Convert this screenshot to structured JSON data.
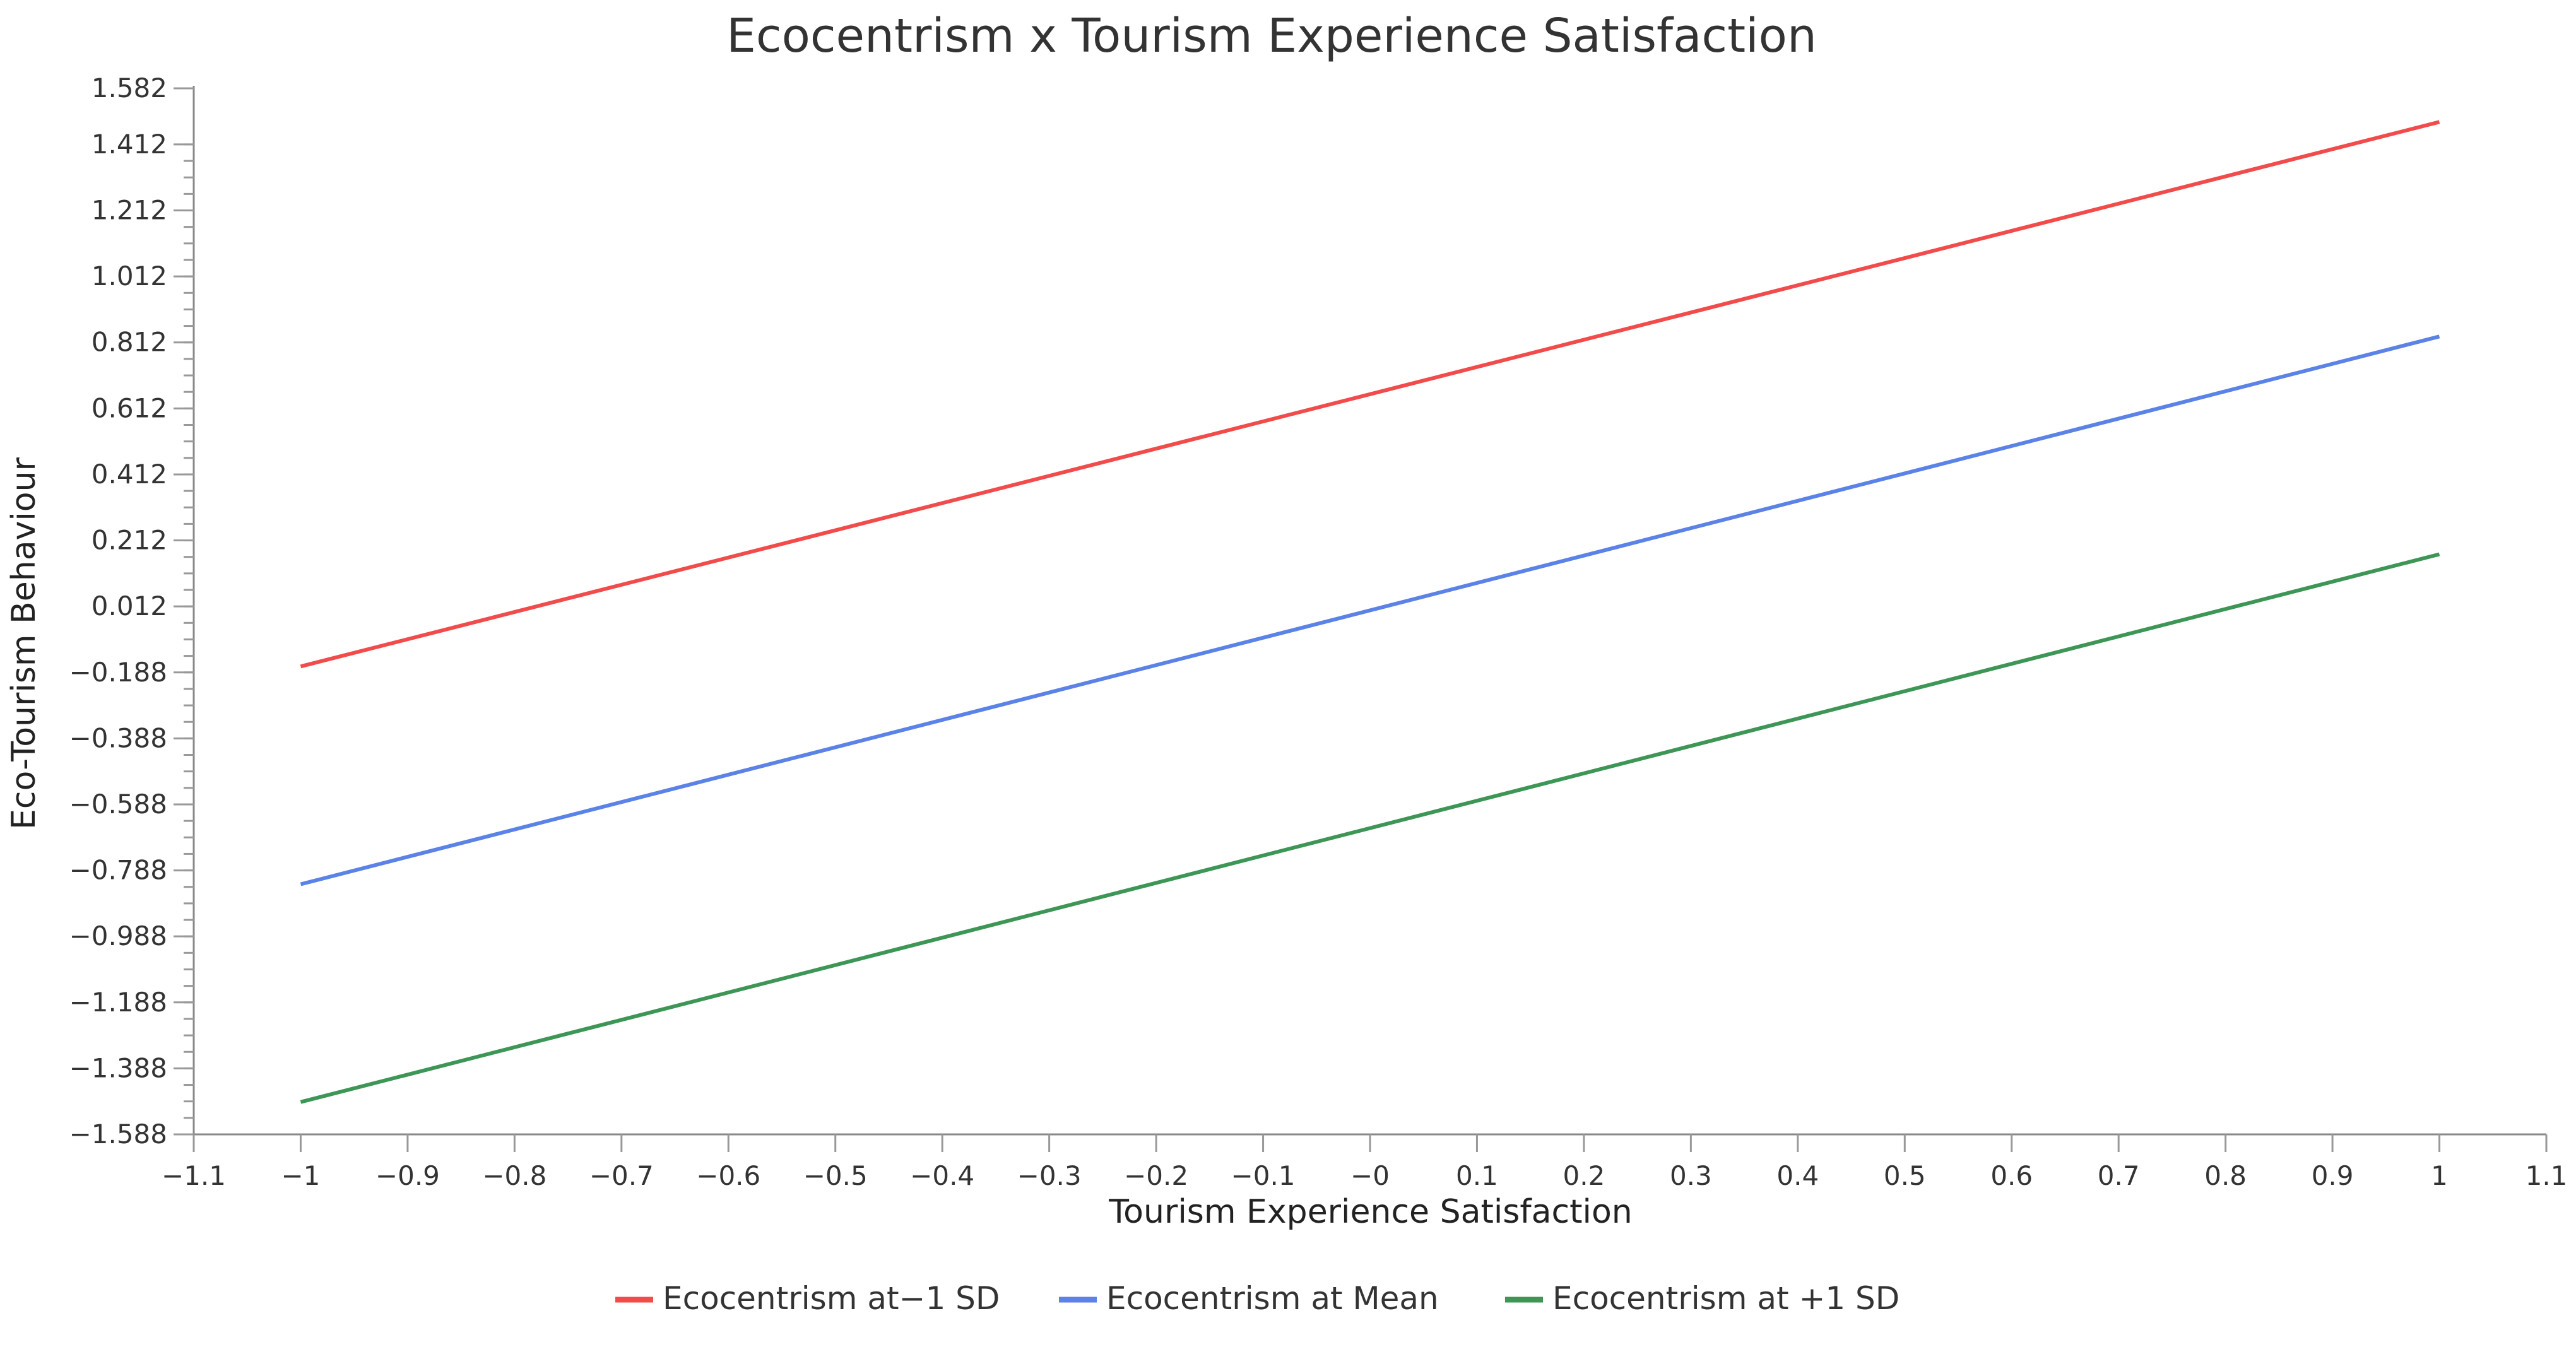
{
  "chart_data": {
    "type": "line",
    "title": "Ecocentrism x Tourism Experience Satisfaction",
    "xlabel": "Tourism Experience Satisfaction",
    "ylabel": "Eco-Tourism Behaviour",
    "xlim": [
      -1.1,
      1.1
    ],
    "ylim": [
      -1.588,
      1.582
    ],
    "x_ticks": [
      -1.1,
      -1,
      -0.9,
      -0.8,
      -0.7,
      -0.6,
      -0.5,
      -0.4,
      -0.3,
      -0.2,
      -0.1,
      0,
      0.1,
      0.2,
      0.3,
      0.4,
      0.5,
      0.6,
      0.7,
      0.8,
      0.9,
      1,
      1.1
    ],
    "x_tick_labels": [
      "−1.1",
      "−1",
      "−0.9",
      "−0.8",
      "−0.7",
      "−0.6",
      "−0.5",
      "−0.4",
      "−0.3",
      "−0.2",
      "−0.1",
      "−0",
      "0.1",
      "0.2",
      "0.3",
      "0.4",
      "0.5",
      "0.6",
      "0.7",
      "0.8",
      "0.9",
      "1",
      "1.1"
    ],
    "y_ticks": [
      1.582,
      1.412,
      1.212,
      1.012,
      0.812,
      0.612,
      0.412,
      0.212,
      0.012,
      -0.188,
      -0.388,
      -0.588,
      -0.788,
      -0.988,
      -1.188,
      -1.388,
      -1.588
    ],
    "y_tick_labels": [
      "1.582",
      "1.412",
      "1.212",
      "1.012",
      "0.812",
      "0.612",
      "0.412",
      "0.212",
      "0.012",
      "−0.188",
      "−0.388",
      "−0.588",
      "−0.788",
      "−0.988",
      "−1.188",
      "−1.388",
      "−1.588"
    ],
    "grid": false,
    "legend_position": "bottom-center",
    "series": [
      {
        "name": "Ecocentrism at−1 SD",
        "color": "#f24b4b",
        "x": [
          -1,
          1
        ],
        "y": [
          -0.17,
          1.48
        ]
      },
      {
        "name": "Ecocentrism at Mean",
        "color": "#5b82e6",
        "x": [
          -1,
          1
        ],
        "y": [
          -0.83,
          0.83
        ]
      },
      {
        "name": "Ecocentrism at +1 SD",
        "color": "#3d9656",
        "x": [
          -1,
          1
        ],
        "y": [
          -1.49,
          0.17
        ]
      }
    ]
  }
}
